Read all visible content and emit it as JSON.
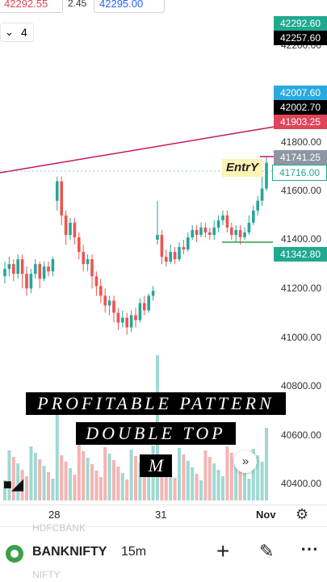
{
  "top": {
    "bid": "42292.55",
    "spread": "2.45",
    "ask": "42295.00"
  },
  "interval_selector": {
    "value": "4",
    "icon": "chevron-down-icon"
  },
  "price_scale": [
    "42200.00",
    "41800.00",
    "41600.00",
    "41400.00",
    "41200.00",
    "41000.00",
    "40800.00",
    "40600.00",
    "40400.00"
  ],
  "price_labels": [
    {
      "value": "42292.60",
      "bg": "#20a98f",
      "fg": "#ffffff"
    },
    {
      "value": "42257.60",
      "bg": "#000000",
      "fg": "#ffffff"
    },
    {
      "value": "42007.60",
      "bg": "#2aa9e0",
      "fg": "#ffffff"
    },
    {
      "value": "42002.70",
      "bg": "#000000",
      "fg": "#ffffff"
    },
    {
      "value": "41903.25",
      "bg": "#e04458",
      "fg": "#ffffff"
    },
    {
      "value": "41741.25",
      "bg": "#8f96a3",
      "fg": "#ffffff"
    },
    {
      "value": "41716.00",
      "bg": "#ffffff",
      "fg": "#20a98f"
    },
    {
      "value": "41342.80",
      "bg": "#20a98f",
      "fg": "#ffffff"
    }
  ],
  "entry_label": "EntrY",
  "banners": {
    "line1": "PROFITABLE PATTERN",
    "line2": "DOUBLE TOP",
    "line3": "M"
  },
  "x_axis": [
    "28",
    "31",
    "Nov"
  ],
  "bottom_bar": {
    "symbol": "BANKNIFTY",
    "timeframe": "15m"
  },
  "ghost_text": {
    "above": "HDFCBANK",
    "below": "NIFTY"
  },
  "colors": {
    "up": "#26a69a",
    "down": "#ef5350",
    "trendline": "#c2185b"
  },
  "icons": [
    "settings-gear-icon",
    "scroll-forward-icon",
    "add-plus-icon",
    "draw-pen-icon",
    "more-icon",
    "symbol-logo-icon",
    "tradingview-logo-icon"
  ]
}
